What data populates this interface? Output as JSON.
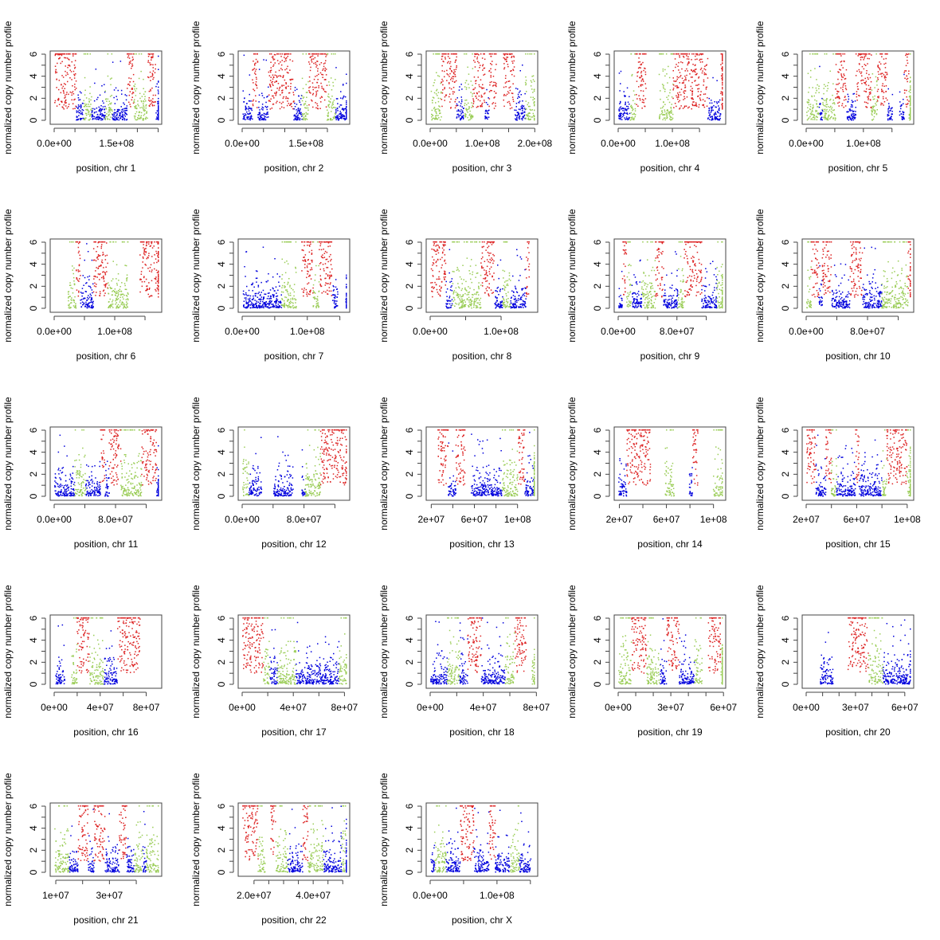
{
  "chart_data": {
    "type": "scatter",
    "ylabel": "normalized copy number profile",
    "ylim": [
      0,
      6
    ],
    "yticks": [
      0,
      2,
      4,
      6
    ],
    "ytick_labels": [
      "0",
      "2",
      "4",
      "6"
    ],
    "series_colors": {
      "loss_or_normal": "#0000dd",
      "gain": "#99cc55",
      "amplification": "#dd2222"
    },
    "panels": [
      {
        "xlabel": "position, chr 1",
        "xlim": [
          0,
          249000000
        ],
        "ticks": [
          0,
          50000000,
          100000000,
          150000000,
          200000000,
          250000000
        ],
        "tick_labels": [
          "0.0e+00",
          "",
          "",
          "1.5e+08",
          "",
          ""
        ],
        "seed": 1
      },
      {
        "xlabel": "position, chr 2",
        "xlim": [
          0,
          243000000
        ],
        "ticks": [
          0,
          50000000,
          100000000,
          150000000,
          200000000
        ],
        "tick_labels": [
          "0.0e+00",
          "",
          "",
          "1.5e+08",
          ""
        ],
        "seed": 2
      },
      {
        "xlabel": "position, chr 3",
        "xlim": [
          0,
          198000000
        ],
        "ticks": [
          0,
          50000000,
          100000000,
          150000000,
          200000000
        ],
        "tick_labels": [
          "0.0e+00",
          "",
          "1.0e+08",
          "",
          "2.0e+08"
        ],
        "seed": 3
      },
      {
        "xlabel": "position, chr 4",
        "xlim": [
          0,
          191000000
        ],
        "ticks": [
          0,
          50000000,
          100000000,
          150000000
        ],
        "tick_labels": [
          "0.0e+00",
          "",
          "1.0e+08",
          ""
        ],
        "seed": 4
      },
      {
        "xlabel": "position, chr 5",
        "xlim": [
          0,
          181000000
        ],
        "ticks": [
          0,
          50000000,
          100000000,
          150000000
        ],
        "tick_labels": [
          "0.0e+00",
          "",
          "1.0e+08",
          ""
        ],
        "seed": 5
      },
      {
        "xlabel": "position, chr 6",
        "xlim": [
          0,
          171000000
        ],
        "ticks": [
          0,
          50000000,
          100000000,
          150000000
        ],
        "tick_labels": [
          "0.0e+00",
          "",
          "1.0e+08",
          ""
        ],
        "seed": 6
      },
      {
        "xlabel": "position, chr 7",
        "xlim": [
          0,
          159000000
        ],
        "ticks": [
          0,
          50000000,
          100000000,
          150000000
        ],
        "tick_labels": [
          "0.0e+00",
          "",
          "1.0e+08",
          ""
        ],
        "seed": 7
      },
      {
        "xlabel": "position, chr 8",
        "xlim": [
          0,
          146000000
        ],
        "ticks": [
          0,
          50000000,
          100000000
        ],
        "tick_labels": [
          "0.0e+00",
          "",
          "1.0e+08"
        ],
        "seed": 8
      },
      {
        "xlabel": "position, chr 9",
        "xlim": [
          0,
          141000000
        ],
        "ticks": [
          0,
          40000000,
          80000000,
          120000000
        ],
        "tick_labels": [
          "0.0e+00",
          "",
          "8.0e+07",
          ""
        ],
        "seed": 9
      },
      {
        "xlabel": "position, chr 10",
        "xlim": [
          0,
          135000000
        ],
        "ticks": [
          0,
          40000000,
          80000000,
          120000000
        ],
        "tick_labels": [
          "0.0e+00",
          "",
          "8.0e+07",
          ""
        ],
        "seed": 10
      },
      {
        "xlabel": "position, chr 11",
        "xlim": [
          0,
          135000000
        ],
        "ticks": [
          0,
          40000000,
          80000000,
          120000000
        ],
        "tick_labels": [
          "0.0e+00",
          "",
          "8.0e+07",
          ""
        ],
        "seed": 11
      },
      {
        "xlabel": "position, chr 12",
        "xlim": [
          0,
          134000000
        ],
        "ticks": [
          0,
          40000000,
          80000000,
          120000000
        ],
        "tick_labels": [
          "0.0e+00",
          "",
          "8.0e+07",
          ""
        ],
        "seed": 12
      },
      {
        "xlabel": "position, chr 13",
        "xlim": [
          19000000,
          115000000
        ],
        "ticks": [
          20000000,
          40000000,
          60000000,
          80000000,
          100000000
        ],
        "tick_labels": [
          "2e+07",
          "",
          "6e+07",
          "",
          "1e+08"
        ],
        "seed": 13
      },
      {
        "xlabel": "position, chr 14",
        "xlim": [
          19000000,
          107000000
        ],
        "ticks": [
          20000000,
          40000000,
          60000000,
          80000000,
          100000000
        ],
        "tick_labels": [
          "2e+07",
          "",
          "6e+07",
          "",
          "1e+08"
        ],
        "seed": 14
      },
      {
        "xlabel": "position, chr 15",
        "xlim": [
          20000000,
          102000000
        ],
        "ticks": [
          20000000,
          40000000,
          60000000,
          80000000,
          100000000
        ],
        "tick_labels": [
          "2e+07",
          "",
          "6e+07",
          "",
          "1e+08"
        ],
        "seed": 15
      },
      {
        "xlabel": "position, chr 16",
        "xlim": [
          0,
          90000000
        ],
        "ticks": [
          0,
          20000000,
          40000000,
          60000000,
          80000000
        ],
        "tick_labels": [
          "0e+00",
          "",
          "4e+07",
          "",
          "8e+07"
        ],
        "seed": 16
      },
      {
        "xlabel": "position, chr 17",
        "xlim": [
          0,
          81000000
        ],
        "ticks": [
          0,
          20000000,
          40000000,
          60000000,
          80000000
        ],
        "tick_labels": [
          "0e+00",
          "",
          "4e+07",
          "",
          "8e+07"
        ],
        "seed": 17
      },
      {
        "xlabel": "position, chr 18",
        "xlim": [
          0,
          78000000
        ],
        "ticks": [
          0,
          20000000,
          40000000,
          60000000
        ],
        "tick_labels": [
          "0e+00",
          "",
          "4e+07",
          ""
        ],
        "seed": 18,
        "extra_tick_label": "8e+07"
      },
      {
        "xlabel": "position, chr 19",
        "xlim": [
          0,
          59000000
        ],
        "ticks": [
          0,
          10000000,
          20000000,
          30000000,
          40000000,
          50000000,
          60000000
        ],
        "tick_labels": [
          "0e+00",
          "",
          "",
          "3e+07",
          "",
          "",
          "6e+07"
        ],
        "seed": 19
      },
      {
        "xlabel": "position, chr 20",
        "xlim": [
          0,
          63000000
        ],
        "ticks": [
          0,
          10000000,
          20000000,
          30000000,
          40000000,
          50000000,
          60000000
        ],
        "tick_labels": [
          "0e+00",
          "",
          "",
          "3e+07",
          "",
          "",
          "6e+07"
        ],
        "seed": 20
      },
      {
        "xlabel": "position, chr 21",
        "xlim": [
          9400000,
          48000000
        ],
        "ticks": [
          10000000,
          20000000,
          30000000,
          40000000
        ],
        "tick_labels": [
          "1e+07",
          "",
          "3e+07",
          ""
        ],
        "seed": 21
      },
      {
        "xlabel": "position, chr 22",
        "xlim": [
          16000000,
          51000000
        ],
        "ticks": [
          20000000,
          25000000,
          30000000,
          35000000,
          40000000,
          45000000,
          50000000
        ],
        "tick_labels": [
          "2.0e+07",
          "",
          "",
          "",
          "4.0e+07",
          "",
          ""
        ],
        "seed": 22
      },
      {
        "xlabel": "position, chr X",
        "xlim": [
          0,
          155000000
        ],
        "ticks": [
          0,
          50000000,
          100000000,
          150000000
        ],
        "tick_labels": [
          "0.0e+00",
          "",
          "1.0e+08",
          ""
        ],
        "seed": 23
      }
    ]
  }
}
